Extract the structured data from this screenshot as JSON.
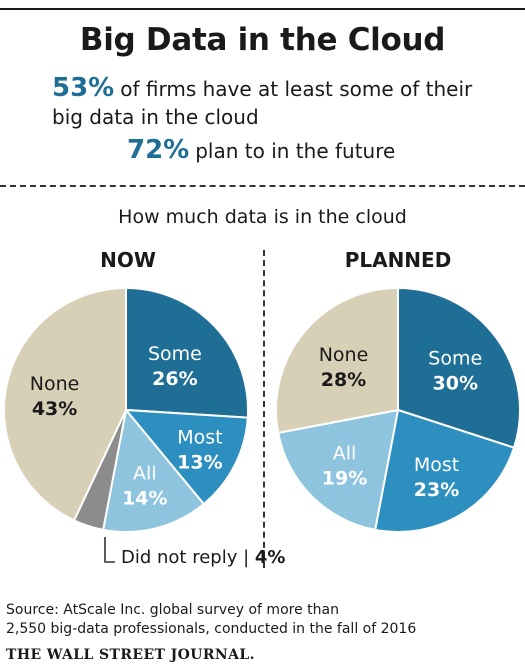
{
  "title": "Big Data in the Cloud",
  "stat1": {
    "value": "53%",
    "text_line1": "of firms have at least some of their",
    "text_line2": "big data in the cloud"
  },
  "stat2": {
    "value": "72%",
    "text": "plan to in the future"
  },
  "subtitle": "How much data is in the cloud",
  "source_line1": "Source: AtScale Inc. global survey of more than",
  "source_line2": "2,550 big-data professionals, conducted in the fall of 2016",
  "publisher": "THE WALL STREET JOURNAL.",
  "colors": {
    "some": "#1e6e95",
    "most": "#2d8fbf",
    "all": "#8ec4de",
    "none": "#d7d0b7",
    "did_not_reply": "#8c8c8c"
  },
  "chart_data": [
    {
      "type": "pie",
      "title": "NOW",
      "slices": [
        {
          "label": "Some",
          "value": 26,
          "display": "26%"
        },
        {
          "label": "Most",
          "value": 13,
          "display": "13%"
        },
        {
          "label": "All",
          "value": 14,
          "display": "14%"
        },
        {
          "label": "Did not reply",
          "value": 4,
          "display": "4%"
        },
        {
          "label": "None",
          "value": 43,
          "display": "43%"
        }
      ]
    },
    {
      "type": "pie",
      "title": "PLANNED",
      "slices": [
        {
          "label": "Some",
          "value": 30,
          "display": "30%"
        },
        {
          "label": "Most",
          "value": 23,
          "display": "23%"
        },
        {
          "label": "All",
          "value": 19,
          "display": "19%"
        },
        {
          "label": "None",
          "value": 28,
          "display": "28%"
        }
      ]
    }
  ]
}
